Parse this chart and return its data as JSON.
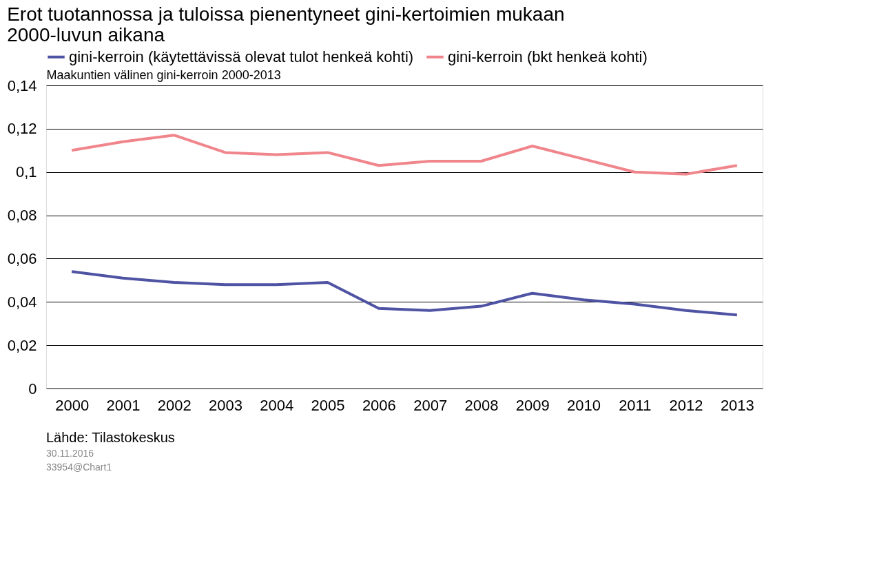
{
  "chart_data": {
    "type": "line",
    "title": [
      "Erot tuotannossa ja tuloissa pienentyneet gini-kertoimien mukaan",
      "2000-luvun aikana"
    ],
    "ylabel": "Maakuntien välinen gini-kerroin 2000-2013",
    "categories": [
      "2000",
      "2001",
      "2002",
      "2003",
      "2004",
      "2005",
      "2006",
      "2007",
      "2008",
      "2009",
      "2010",
      "2011",
      "2012",
      "2013"
    ],
    "series": [
      {
        "name": "gini-kerroin (käytettävissä olevat tulot henkeä kohti)",
        "color": "#4f53a3",
        "values": [
          0.054,
          0.051,
          0.049,
          0.048,
          0.048,
          0.049,
          0.037,
          0.036,
          0.038,
          0.044,
          0.041,
          0.039,
          0.036,
          0.034
        ]
      },
      {
        "name": "gini-kerroin (bkt henkeä kohti)",
        "color": "#f0868c",
        "values": [
          0.11,
          0.114,
          0.117,
          0.109,
          0.108,
          0.109,
          0.103,
          0.105,
          0.105,
          0.112,
          0.106,
          0.1,
          0.099,
          0.103
        ]
      }
    ],
    "ylim": [
      0,
      0.14
    ],
    "yticks": [
      {
        "value": 0,
        "label": "0"
      },
      {
        "value": 0.02,
        "label": "0,02"
      },
      {
        "value": 0.04,
        "label": "0,04"
      },
      {
        "value": 0.06,
        "label": "0,06"
      },
      {
        "value": 0.08,
        "label": "0,08"
      },
      {
        "value": 0.1,
        "label": "0,1"
      },
      {
        "value": 0.12,
        "label": "0,12"
      },
      {
        "value": 0.14,
        "label": "0,14"
      }
    ],
    "grid": "y",
    "legend": "top",
    "marker": "none",
    "line_style": "solid",
    "annotations": [
      "Lähde: Tilastokeskus",
      "30.11.2016",
      "33954@Chart1"
    ]
  }
}
